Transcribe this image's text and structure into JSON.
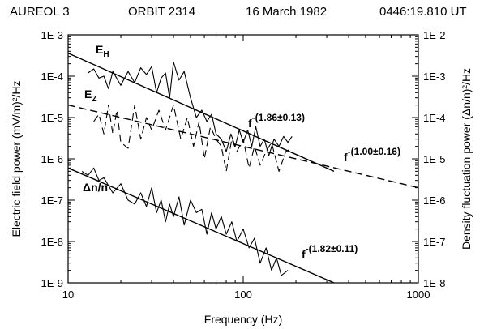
{
  "header": {
    "satellite": "AUREOL 3",
    "orbit": "ORBIT 2314",
    "date": "16 March 1982",
    "time": "0446:19.810 UT"
  },
  "chart_data": {
    "type": "line",
    "xlabel": "Frequency  (Hz)",
    "ylabel_left": "Electric field power  (mV/m)²/Hz",
    "ylabel_right": "Density fluctuation power  (Δn/n)²/Hz",
    "x_scale": "log",
    "y_scale": "log",
    "xlim": [
      10,
      1000
    ],
    "ylim_left": [
      1e-09,
      0.001
    ],
    "ylim_right": [
      1e-08,
      0.01
    ],
    "x_ticks": [
      "10",
      "100",
      "1000"
    ],
    "y_ticks_left": [
      "1E-9",
      "1E-8",
      "1E-7",
      "1E-6",
      "1E-5",
      "1E-4",
      "1E-3"
    ],
    "y_ticks_right": [
      "1E-8",
      "1E-7",
      "1E-6",
      "1E-5",
      "1E-4",
      "1E-3",
      "1E-2"
    ],
    "grid": false,
    "series": [
      {
        "name": "E_H",
        "style": "solid",
        "x": [
          13,
          14,
          15,
          16,
          17,
          18,
          20,
          22,
          24,
          26,
          28,
          30,
          32,
          34,
          36,
          38,
          40,
          43,
          46,
          50,
          54,
          58,
          62,
          66,
          70,
          75,
          80,
          85,
          90,
          95,
          100,
          106,
          112,
          118,
          125,
          132,
          140,
          150,
          160,
          170,
          180,
          190
        ],
        "y": [
          0.00012,
          0.00015,
          9e-05,
          0.0001,
          5e-05,
          0.00013,
          6e-05,
          0.00013,
          7e-05,
          0.00016,
          0.00011,
          0.00017,
          4e-05,
          9e-05,
          0.00012,
          3e-05,
          0.00022,
          8e-05,
          0.00013,
          3e-05,
          1e-05,
          1.5e-05,
          8e-06,
          1.2e-05,
          4e-06,
          3e-06,
          1.5e-06,
          4e-06,
          2e-06,
          5e-06,
          2.5e-06,
          5e-06,
          2e-06,
          6e-06,
          2e-06,
          3e-06,
          1.2e-06,
          3e-06,
          2e-06,
          3.5e-06,
          2.5e-06,
          3.5e-06
        ]
      },
      {
        "name": "E_Z",
        "style": "dashed",
        "x": [
          14,
          15,
          16,
          17,
          18,
          19,
          20,
          22,
          24,
          26,
          28,
          30,
          33,
          36,
          40,
          44,
          48,
          52,
          56,
          60,
          65,
          70,
          75,
          80,
          86,
          92,
          100,
          108,
          116,
          125,
          135,
          145,
          160,
          175,
          190
        ],
        "y": [
          8e-06,
          1.2e-05,
          4e-06,
          2e-05,
          4e-06,
          1.5e-05,
          2.5e-06,
          1.8e-06,
          2e-05,
          3e-06,
          1e-05,
          5e-06,
          1.5e-05,
          5e-06,
          2e-05,
          3e-06,
          1e-05,
          2e-06,
          8e-06,
          1e-06,
          6e-06,
          3e-06,
          2e-06,
          5e-07,
          3e-06,
          1.5e-06,
          3e-06,
          6e-07,
          2e-06,
          7e-07,
          1.5e-06,
          2.5e-06,
          5e-07,
          1.5e-06,
          1.8e-06
        ]
      },
      {
        "name": "Δn/n",
        "style": "solid",
        "axis": "right",
        "x": [
          12,
          13,
          14,
          15,
          16,
          18,
          20,
          22,
          24,
          26,
          28,
          30,
          32,
          34,
          36,
          38,
          40,
          43,
          46,
          50,
          54,
          58,
          62,
          66,
          70,
          75,
          80,
          86,
          92,
          100,
          108,
          116,
          125,
          135,
          145,
          155,
          165,
          180
        ],
        "y": [
          5e-06,
          4e-06,
          6e-06,
          3e-06,
          3.5e-06,
          1.5e-06,
          2.5e-06,
          1e-06,
          8e-07,
          1.5e-06,
          7e-07,
          2e-06,
          5e-07,
          1e-06,
          3e-07,
          8e-07,
          4e-07,
          1.2e-06,
          2.5e-07,
          1e-06,
          5e-07,
          6e-07,
          1.5e-07,
          5e-07,
          2e-07,
          4e-07,
          1.5e-07,
          3e-07,
          1e-07,
          2e-07,
          7e-08,
          1.2e-07,
          3e-08,
          7e-08,
          2e-08,
          4e-08,
          1.5e-08,
          2e-08
        ]
      }
    ],
    "fits": [
      {
        "label": "f^-(1.86±0.13)",
        "style": "solid",
        "x": [
          10,
          330
        ],
        "y": [
          0.00036,
          5e-07
        ]
      },
      {
        "label": "f^-(1.00±0.16)",
        "style": "dashed",
        "x": [
          10,
          1000
        ],
        "y": [
          2e-05,
          2e-07
        ]
      },
      {
        "label": "f^-(1.82±0.11)",
        "style": "solid",
        "axis": "right",
        "x": [
          10,
          330
        ],
        "y": [
          6e-06,
          1e-08
        ]
      }
    ],
    "annotations": {
      "eh_base": "E",
      "eh_sub": "H",
      "ez_base": "E",
      "ez_sub": "Z",
      "dn": "Δn/n",
      "fit1_base": "f",
      "fit1_exp": "-(1.86±0.13)",
      "fit2_base": "f",
      "fit2_exp": "-(1.00±0.16)",
      "fit3_base": "f",
      "fit3_exp": "-(1.82±0.11)"
    }
  }
}
